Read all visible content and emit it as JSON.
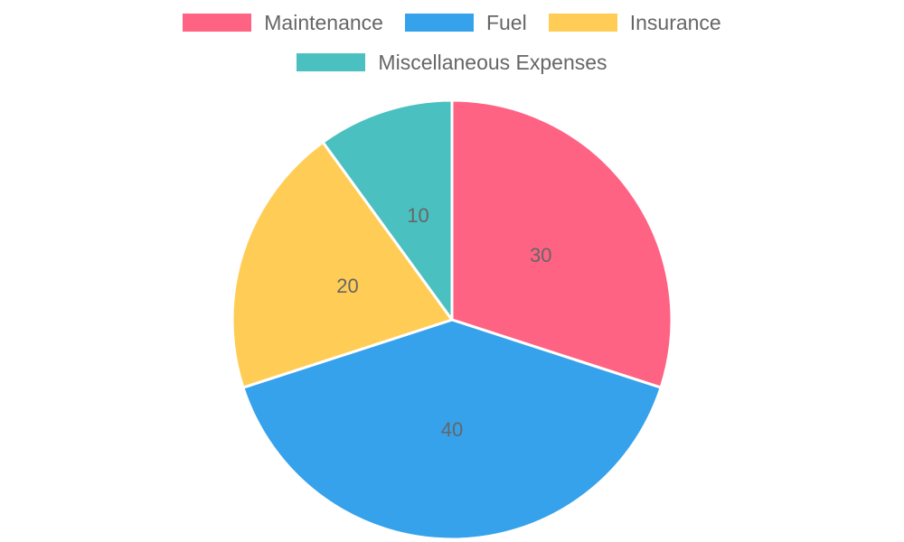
{
  "chart_data": {
    "type": "pie",
    "categories": [
      "Maintenance",
      "Fuel",
      "Insurance",
      "Miscellaneous Expenses"
    ],
    "values": [
      30,
      40,
      20,
      10
    ],
    "colors": [
      "#ff6384",
      "#36a2eb",
      "#ffcd56",
      "#4bc0c0"
    ],
    "legend_position": "top",
    "data_labels": [
      "30",
      "40",
      "20",
      "10"
    ]
  }
}
